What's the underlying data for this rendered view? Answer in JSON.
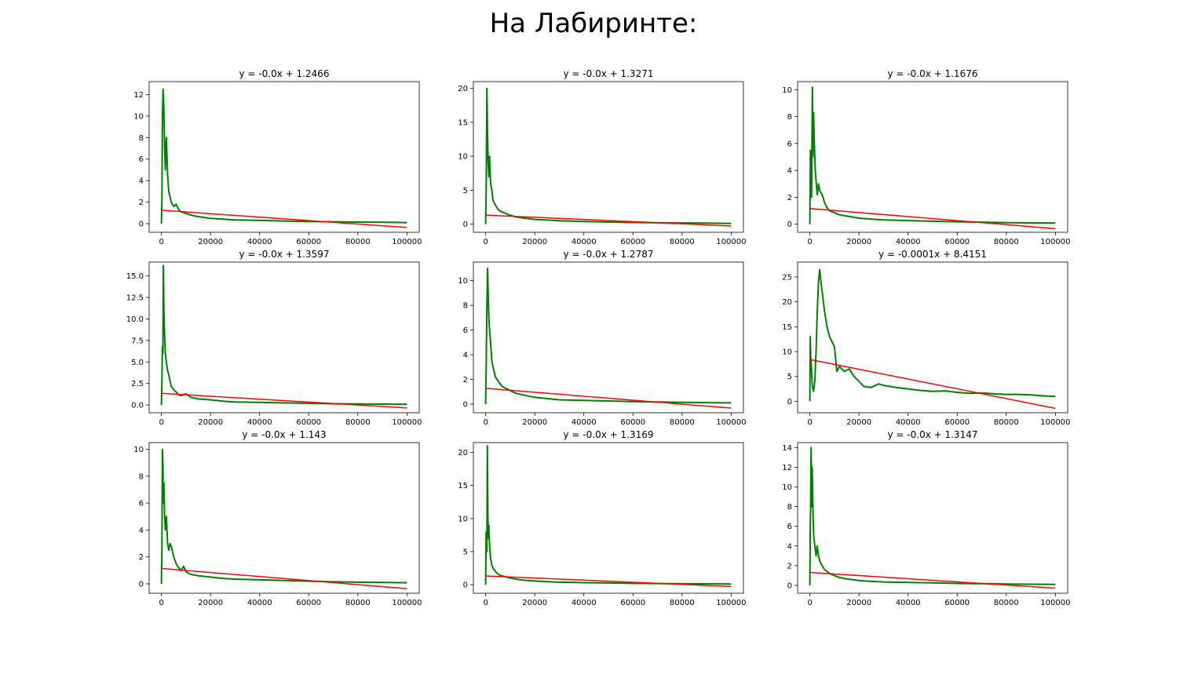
{
  "figure": {
    "suptitle": "На Лабиринте:",
    "colors": {
      "data_line": "#008000",
      "fit_line": "#ff0000",
      "axes": "#000000"
    }
  },
  "chart_data": [
    {
      "type": "line",
      "title": "y = -0.0x + 1.2466",
      "xlim": [
        -5000,
        105000
      ],
      "ylim": [
        -0.8,
        13.2
      ],
      "xticks": [
        0,
        20000,
        40000,
        60000,
        80000,
        100000
      ],
      "xtick_labels": [
        "0",
        "20000",
        "40000",
        "60000",
        "80000",
        "100000"
      ],
      "yticks": [
        0,
        2,
        4,
        6,
        8,
        10,
        12
      ],
      "ytick_labels": [
        "0",
        "2",
        "4",
        "6",
        "8",
        "10",
        "12"
      ],
      "fit": {
        "slope": -1.6e-05,
        "intercept": 1.2466
      },
      "series": [
        {
          "x": [
            0,
            200,
            400,
            700,
            1000,
            1300,
            1600,
            2000,
            2500,
            3000,
            3500,
            4000,
            5000,
            6000,
            7000,
            8000,
            10000,
            12000,
            15000,
            20000,
            25000,
            30000,
            40000,
            50000,
            60000,
            70000,
            80000,
            90000,
            100000
          ],
          "y": [
            0,
            2.5,
            10,
            12.5,
            10.5,
            7,
            5,
            8,
            4.5,
            3,
            2.5,
            2,
            1.6,
            1.8,
            1.3,
            1.1,
            0.95,
            0.8,
            0.65,
            0.5,
            0.42,
            0.35,
            0.3,
            0.25,
            0.2,
            0.18,
            0.15,
            0.13,
            0.1
          ]
        }
      ]
    },
    {
      "type": "line",
      "title": "y = -0.0x + 1.3271",
      "xlim": [
        -5000,
        105000
      ],
      "ylim": [
        -1.2,
        21
      ],
      "xticks": [
        0,
        20000,
        40000,
        60000,
        80000,
        100000
      ],
      "xtick_labels": [
        "0",
        "20000",
        "40000",
        "60000",
        "80000",
        "100000"
      ],
      "yticks": [
        0,
        5,
        10,
        15,
        20
      ],
      "ytick_labels": [
        "0",
        "5",
        "10",
        "15",
        "20"
      ],
      "fit": {
        "slope": -1.6e-05,
        "intercept": 1.3271
      },
      "series": [
        {
          "x": [
            0,
            200,
            500,
            800,
            1000,
            1300,
            1600,
            2000,
            2500,
            3000,
            4000,
            5000,
            6000,
            8000,
            10000,
            12000,
            15000,
            20000,
            25000,
            30000,
            40000,
            50000,
            60000,
            70000,
            80000,
            90000,
            100000
          ],
          "y": [
            0,
            5,
            20,
            13,
            9,
            7,
            10,
            6,
            5,
            3.5,
            2.8,
            2.2,
            1.9,
            1.6,
            1.3,
            1.1,
            0.9,
            0.7,
            0.6,
            0.5,
            0.4,
            0.3,
            0.25,
            0.2,
            0.18,
            0.15,
            0.1
          ]
        }
      ]
    },
    {
      "type": "line",
      "title": "y = -0.0x + 1.1676",
      "xlim": [
        -5000,
        105000
      ],
      "ylim": [
        -0.6,
        10.6
      ],
      "xticks": [
        0,
        20000,
        40000,
        60000,
        80000,
        100000
      ],
      "xtick_labels": [
        "0",
        "20000",
        "40000",
        "60000",
        "80000",
        "100000"
      ],
      "yticks": [
        0,
        2,
        4,
        6,
        8,
        10
      ],
      "ytick_labels": [
        "0",
        "2",
        "4",
        "6",
        "8",
        "10"
      ],
      "fit": {
        "slope": -1.5e-05,
        "intercept": 1.1676
      },
      "series": [
        {
          "x": [
            0,
            200,
            400,
            700,
            1000,
            1200,
            1500,
            1800,
            2200,
            2600,
            3000,
            3500,
            4000,
            5000,
            6000,
            7000,
            8000,
            10000,
            12000,
            15000,
            20000,
            25000,
            30000,
            40000,
            50000,
            60000,
            70000,
            80000,
            90000,
            100000
          ],
          "y": [
            0,
            5.5,
            5,
            2,
            10.2,
            5,
            8.3,
            6,
            4,
            3,
            2.2,
            3,
            2.5,
            2.2,
            1.6,
            1.2,
            1,
            0.85,
            0.7,
            0.6,
            0.45,
            0.38,
            0.32,
            0.27,
            0.22,
            0.18,
            0.15,
            0.12,
            0.1,
            0.08
          ]
        }
      ]
    },
    {
      "type": "line",
      "title": "y = -0.0x + 1.3597",
      "xlim": [
        -5000,
        105000
      ],
      "ylim": [
        -0.9,
        16.6
      ],
      "xticks": [
        0,
        20000,
        40000,
        60000,
        80000,
        100000
      ],
      "xtick_labels": [
        "0",
        "20000",
        "40000",
        "60000",
        "80000",
        "100000"
      ],
      "yticks": [
        0,
        2.5,
        5,
        7.5,
        10,
        12.5,
        15
      ],
      "ytick_labels": [
        "0.0",
        "2.5",
        "5.0",
        "7.5",
        "10.0",
        "12.5",
        "15.0"
      ],
      "fit": {
        "slope": -1.7e-05,
        "intercept": 1.3597
      },
      "series": [
        {
          "x": [
            0,
            200,
            400,
            600,
            800,
            1000,
            1300,
            1600,
            2000,
            2500,
            3000,
            3500,
            4000,
            5000,
            6000,
            7000,
            8000,
            10000,
            12000,
            15000,
            20000,
            25000,
            30000,
            40000,
            50000,
            60000,
            70000,
            80000,
            90000,
            100000
          ],
          "y": [
            0,
            3,
            6.8,
            6,
            16.2,
            11,
            8,
            6,
            5,
            4,
            3.5,
            2.8,
            2.2,
            1.8,
            1.5,
            1.2,
            1.1,
            1.3,
            0.9,
            0.7,
            0.6,
            0.45,
            0.35,
            0.3,
            0.25,
            0.2,
            0.15,
            0.12,
            0.1,
            0.08
          ]
        }
      ]
    },
    {
      "type": "line",
      "title": "y = -0.0x + 1.2787",
      "xlim": [
        -5000,
        105000
      ],
      "ylim": [
        -0.7,
        11.5
      ],
      "xticks": [
        0,
        20000,
        40000,
        60000,
        80000,
        100000
      ],
      "xtick_labels": [
        "0",
        "20000",
        "40000",
        "60000",
        "80000",
        "100000"
      ],
      "yticks": [
        0,
        2,
        4,
        6,
        8,
        10
      ],
      "ytick_labels": [
        "0",
        "2",
        "4",
        "6",
        "8",
        "10"
      ],
      "fit": {
        "slope": -1.6e-05,
        "intercept": 1.2787
      },
      "series": [
        {
          "x": [
            0,
            200,
            500,
            800,
            1000,
            1300,
            1600,
            2000,
            2500,
            3000,
            3500,
            4000,
            5000,
            6000,
            7000,
            8000,
            10000,
            12000,
            15000,
            20000,
            25000,
            30000,
            40000,
            50000,
            60000,
            70000,
            80000,
            90000,
            100000
          ],
          "y": [
            0,
            3,
            8,
            11,
            9,
            7,
            6,
            5,
            3.5,
            3,
            2.6,
            2.2,
            1.9,
            1.6,
            1.4,
            1.3,
            1.1,
            0.9,
            0.75,
            0.55,
            0.45,
            0.35,
            0.3,
            0.25,
            0.2,
            0.17,
            0.14,
            0.12,
            0.1
          ]
        }
      ]
    },
    {
      "type": "line",
      "title": "y = -0.0001x + 8.4151",
      "xlim": [
        -5000,
        105000
      ],
      "ylim": [
        -2.3,
        28
      ],
      "xticks": [
        0,
        20000,
        40000,
        60000,
        80000,
        100000
      ],
      "xtick_labels": [
        "0",
        "20000",
        "40000",
        "60000",
        "80000",
        "100000"
      ],
      "yticks": [
        0,
        5,
        10,
        15,
        20,
        25
      ],
      "ytick_labels": [
        "0",
        "5",
        "10",
        "15",
        "20",
        "25"
      ],
      "fit": {
        "slope": -9.83e-05,
        "intercept": 8.4151
      },
      "series": [
        {
          "x": [
            0,
            150,
            300,
            500,
            800,
            1000,
            1500,
            2000,
            2500,
            3000,
            3500,
            4000,
            4500,
            5000,
            6000,
            7000,
            8000,
            9000,
            10000,
            11000,
            12000,
            14000,
            16000,
            18000,
            20000,
            22000,
            25000,
            28000,
            30000,
            35000,
            40000,
            45000,
            50000,
            55000,
            60000,
            65000,
            70000,
            75000,
            80000,
            85000,
            90000,
            95000,
            100000
          ],
          "y": [
            0,
            13,
            9,
            8,
            5,
            3,
            2,
            4,
            10,
            18,
            24,
            26.5,
            24,
            22,
            18,
            15,
            13,
            12,
            11,
            6,
            7,
            6,
            6.5,
            5,
            4,
            3,
            2.8,
            3.5,
            3.2,
            2.8,
            2.5,
            2.2,
            2,
            2.1,
            1.8,
            1.6,
            1.7,
            1.5,
            1.4,
            1.4,
            1.3,
            1.1,
            1
          ]
        }
      ]
    },
    {
      "type": "line",
      "title": "y = -0.0x + 1.143",
      "xlim": [
        -5000,
        105000
      ],
      "ylim": [
        -0.7,
        10.5
      ],
      "xticks": [
        0,
        20000,
        40000,
        60000,
        80000,
        100000
      ],
      "xtick_labels": [
        "0",
        "20000",
        "40000",
        "60000",
        "80000",
        "100000"
      ],
      "yticks": [
        0,
        2,
        4,
        6,
        8,
        10
      ],
      "ytick_labels": [
        "0",
        "2",
        "4",
        "6",
        "8",
        "10"
      ],
      "fit": {
        "slope": -1.5e-05,
        "intercept": 1.143
      },
      "series": [
        {
          "x": [
            0,
            200,
            400,
            600,
            800,
            1000,
            1300,
            1600,
            2000,
            2500,
            3000,
            3500,
            4000,
            5000,
            6000,
            7000,
            8000,
            9000,
            10000,
            12000,
            15000,
            20000,
            25000,
            30000,
            40000,
            50000,
            60000,
            70000,
            80000,
            90000,
            100000
          ],
          "y": [
            0,
            3,
            10,
            9,
            6,
            7.5,
            5,
            4,
            5,
            3,
            2.5,
            3,
            2.8,
            2,
            1.5,
            1.2,
            1,
            1.3,
            0.9,
            0.7,
            0.6,
            0.5,
            0.4,
            0.35,
            0.3,
            0.25,
            0.2,
            0.15,
            0.12,
            0.1,
            0.08
          ]
        }
      ]
    },
    {
      "type": "line",
      "title": "y = -0.0x + 1.3169",
      "xlim": [
        -5000,
        105000
      ],
      "ylim": [
        -1.3,
        21.5
      ],
      "xticks": [
        0,
        20000,
        40000,
        60000,
        80000,
        100000
      ],
      "xtick_labels": [
        "0",
        "20000",
        "40000",
        "60000",
        "80000",
        "100000"
      ],
      "yticks": [
        0,
        5,
        10,
        15,
        20
      ],
      "ytick_labels": [
        "0",
        "5",
        "10",
        "15",
        "20"
      ],
      "fit": {
        "slope": -1.6e-05,
        "intercept": 1.3169
      },
      "series": [
        {
          "x": [
            0,
            200,
            500,
            700,
            900,
            1100,
            1300,
            1600,
            2000,
            2500,
            3000,
            4000,
            5000,
            6000,
            8000,
            10000,
            12000,
            15000,
            20000,
            25000,
            30000,
            40000,
            50000,
            60000,
            70000,
            80000,
            90000,
            100000
          ],
          "y": [
            0,
            8,
            5,
            21,
            10,
            7,
            9,
            6,
            4,
            3,
            2.5,
            2,
            1.6,
            1.4,
            1.2,
            1,
            0.85,
            0.7,
            0.55,
            0.45,
            0.38,
            0.3,
            0.25,
            0.2,
            0.17,
            0.14,
            0.12,
            0.1
          ]
        }
      ]
    },
    {
      "type": "line",
      "title": "y = -0.0x + 1.3147",
      "xlim": [
        -5000,
        105000
      ],
      "ylim": [
        -0.8,
        14.5
      ],
      "xticks": [
        0,
        20000,
        40000,
        60000,
        80000,
        100000
      ],
      "xtick_labels": [
        "0",
        "20000",
        "40000",
        "60000",
        "80000",
        "100000"
      ],
      "yticks": [
        0,
        2,
        4,
        6,
        8,
        10,
        12,
        14
      ],
      "ytick_labels": [
        "0",
        "2",
        "4",
        "6",
        "8",
        "10",
        "12",
        "14"
      ],
      "fit": {
        "slope": -1.6e-05,
        "intercept": 1.3147
      },
      "series": [
        {
          "x": [
            0,
            150,
            300,
            500,
            700,
            900,
            1100,
            1300,
            1600,
            2000,
            2500,
            3000,
            3500,
            4000,
            5000,
            6000,
            7000,
            8000,
            10000,
            12000,
            15000,
            20000,
            25000,
            30000,
            40000,
            50000,
            60000,
            70000,
            80000,
            90000,
            100000
          ],
          "y": [
            0,
            6,
            8,
            14,
            8,
            12,
            10,
            7,
            5,
            4,
            3,
            4,
            3,
            2.5,
            2,
            1.6,
            1.4,
            1.2,
            1,
            0.8,
            0.65,
            0.5,
            0.4,
            0.35,
            0.3,
            0.25,
            0.2,
            0.17,
            0.14,
            0.12,
            0.1
          ]
        }
      ]
    }
  ]
}
